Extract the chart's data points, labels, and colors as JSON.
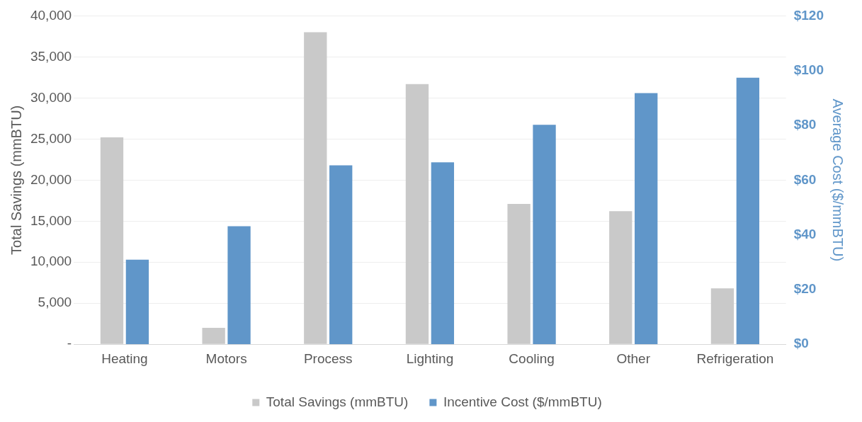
{
  "chart_data": {
    "type": "bar",
    "categories": [
      "Heating",
      "Motors",
      "Process",
      "Lighting",
      "Cooling",
      "Other",
      "Refrigeration"
    ],
    "series": [
      {
        "name": "Total Savings (mmBTU)",
        "color": "#c9c9c9",
        "values": [
          25200,
          2000,
          38000,
          31700,
          17100,
          16200,
          6800
        ]
      },
      {
        "name": "Incentive Cost ($/mmBTU)",
        "color": "#6096c9",
        "axis": "y2",
        "values": [
          30.9,
          43.1,
          65.4,
          66.5,
          80.2,
          91.8,
          97.4
        ]
      }
    ],
    "ylabel": "Total Savings (mmBTU)",
    "y2label": "Average Cost ($/mmBTU)",
    "ylim": [
      0,
      40000
    ],
    "yticks": [
      {
        "value": 0,
        "label": "-"
      },
      {
        "value": 5000,
        "label": "5,000"
      },
      {
        "value": 10000,
        "label": "10,000"
      },
      {
        "value": 15000,
        "label": "15,000"
      },
      {
        "value": 20000,
        "label": "20,000"
      },
      {
        "value": 25000,
        "label": "25,000"
      },
      {
        "value": 30000,
        "label": "30,000"
      },
      {
        "value": 35000,
        "label": "35,000"
      },
      {
        "value": 40000,
        "label": "40,000"
      }
    ],
    "y2lim": [
      0,
      120
    ],
    "y2ticks": [
      {
        "value": 0,
        "label": "$0"
      },
      {
        "value": 20,
        "label": "$20"
      },
      {
        "value": 40,
        "label": "$40"
      },
      {
        "value": 60,
        "label": "$60"
      },
      {
        "value": 80,
        "label": "$80"
      },
      {
        "value": 100,
        "label": "$100"
      },
      {
        "value": 120,
        "label": "$120"
      }
    ],
    "grid": "y",
    "legend": "bottom"
  }
}
